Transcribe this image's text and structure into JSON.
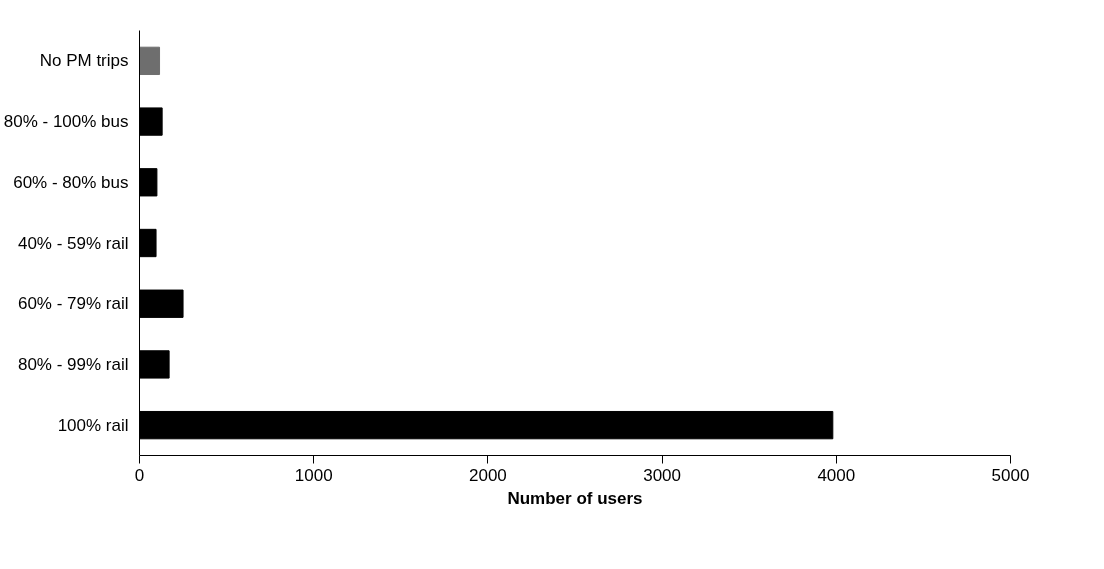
{
  "chart_data": {
    "type": "bar",
    "orientation": "horizontal",
    "xlabel": "Number of users",
    "categories": [
      "No PM trips",
      "80% - 100% bus",
      "60% - 80% bus",
      "40% - 59% rail",
      "60% - 79% rail",
      "80% - 99% rail",
      "100% rail"
    ],
    "values": [
      115,
      130,
      100,
      95,
      250,
      170,
      3980
    ],
    "colors": [
      "#6e6e6e",
      "#000000",
      "#000000",
      "#000000",
      "#000000",
      "#000000",
      "#000000"
    ],
    "xlim": [
      0,
      5000
    ],
    "xticks": [
      0,
      1000,
      2000,
      3000,
      4000,
      5000
    ],
    "grid": false
  }
}
